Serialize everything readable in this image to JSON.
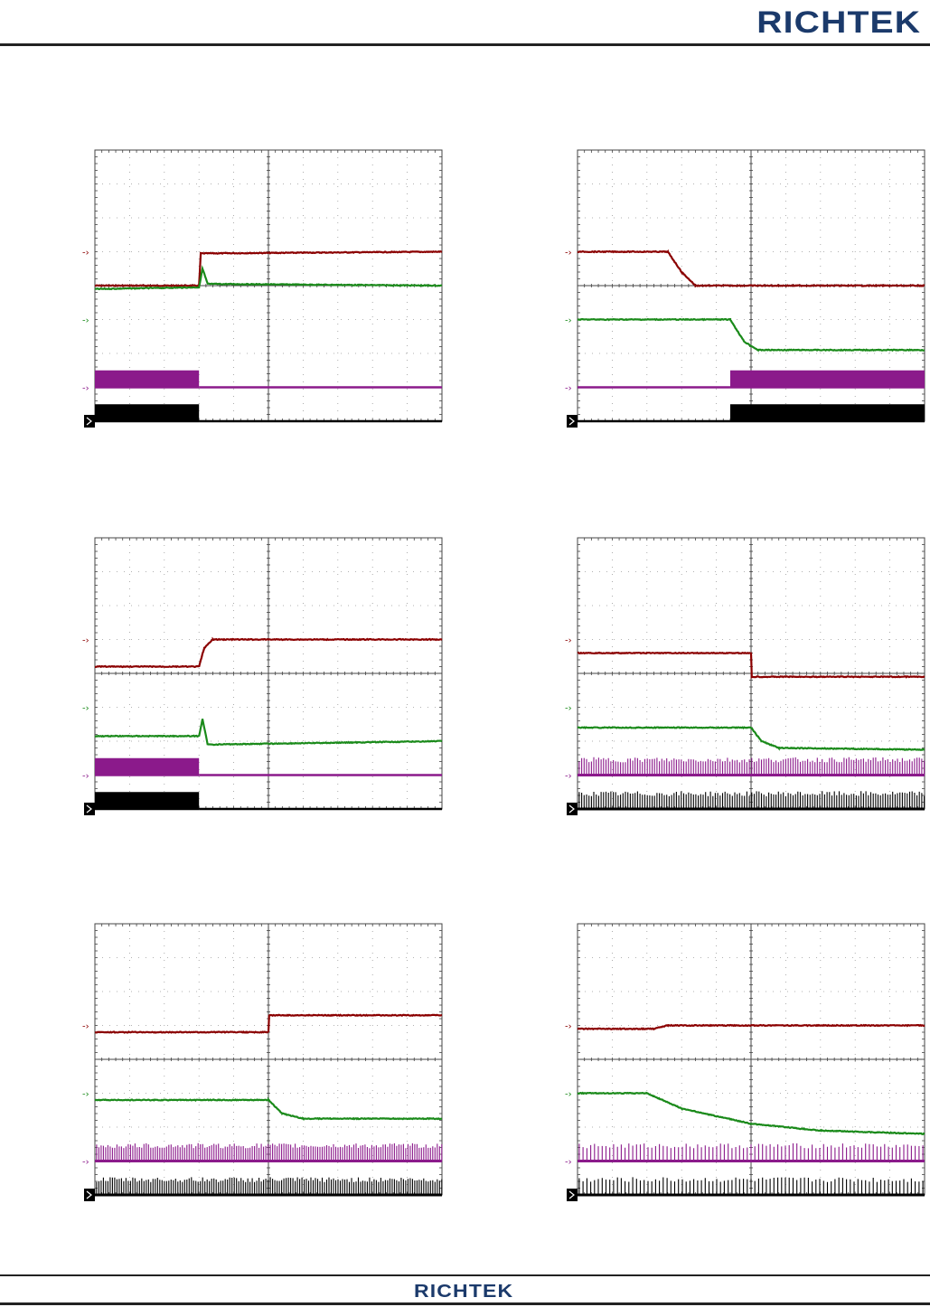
{
  "header": {
    "logo_text": "RICHTEK"
  },
  "footer": {
    "logo_text": "RICHTEK"
  },
  "colors": {
    "ch1": "#8b0000",
    "ch2": "#1a8a1a",
    "ch3": "#8b1a8b",
    "ch4": "#000000",
    "grid": "#444444",
    "brand": "#1b3a6b"
  },
  "chart_data": [
    {
      "type": "line",
      "title": "",
      "grid": true,
      "divisions": {
        "x": 10,
        "y": 8
      },
      "series": [
        {
          "channel": 1,
          "color": "#8b0000",
          "kind": "level",
          "ground_div": 3,
          "points": [
            [
              0,
              4.0
            ],
            [
              3.0,
              4.0
            ],
            [
              3.05,
              3.05
            ],
            [
              10,
              3.0
            ]
          ]
        },
        {
          "channel": 2,
          "color": "#1a8a1a",
          "kind": "level",
          "ground_div": 5,
          "points": [
            [
              0,
              4.1
            ],
            [
              3.0,
              4.05
            ],
            [
              3.1,
              3.5
            ],
            [
              3.25,
              3.95
            ],
            [
              10,
              4.0
            ]
          ]
        },
        {
          "channel": 3,
          "color": "#8b1a8b",
          "kind": "switching",
          "ground_div": 7,
          "segments": [
            [
              0,
              3.0,
              0.5
            ],
            [
              3.0,
              10,
              0.0
            ]
          ]
        },
        {
          "channel": 4,
          "color": "#000000",
          "kind": "switching",
          "ground_div": 8,
          "segments": [
            [
              0,
              3.0,
              0.5
            ],
            [
              3.0,
              10,
              0.0
            ]
          ]
        }
      ]
    },
    {
      "type": "line",
      "title": "",
      "grid": true,
      "divisions": {
        "x": 10,
        "y": 8
      },
      "series": [
        {
          "channel": 1,
          "color": "#8b0000",
          "kind": "level",
          "ground_div": 3,
          "points": [
            [
              0,
              3.0
            ],
            [
              2.6,
              3.0
            ],
            [
              3.0,
              3.6
            ],
            [
              3.4,
              4.0
            ],
            [
              10,
              4.0
            ]
          ]
        },
        {
          "channel": 2,
          "color": "#1a8a1a",
          "kind": "level",
          "ground_div": 5,
          "points": [
            [
              0,
              5.0
            ],
            [
              4.4,
              5.0
            ],
            [
              4.8,
              5.65
            ],
            [
              5.2,
              5.9
            ],
            [
              10,
              5.9
            ]
          ]
        },
        {
          "channel": 3,
          "color": "#8b1a8b",
          "kind": "switching",
          "ground_div": 7,
          "segments": [
            [
              0,
              4.4,
              0.0
            ],
            [
              4.4,
              10,
              0.5
            ]
          ]
        },
        {
          "channel": 4,
          "color": "#000000",
          "kind": "switching",
          "ground_div": 8,
          "segments": [
            [
              0,
              4.4,
              0.0
            ],
            [
              4.4,
              10,
              0.5
            ]
          ]
        }
      ]
    },
    {
      "type": "line",
      "title": "",
      "grid": true,
      "divisions": {
        "x": 10,
        "y": 8
      },
      "series": [
        {
          "channel": 1,
          "color": "#8b0000",
          "kind": "level",
          "ground_div": 3,
          "points": [
            [
              0,
              3.8
            ],
            [
              3.0,
              3.8
            ],
            [
              3.15,
              3.25
            ],
            [
              3.4,
              3.0
            ],
            [
              10,
              3.0
            ]
          ]
        },
        {
          "channel": 2,
          "color": "#1a8a1a",
          "kind": "level",
          "ground_div": 5,
          "points": [
            [
              0,
              5.85
            ],
            [
              3.0,
              5.85
            ],
            [
              3.1,
              5.35
            ],
            [
              3.25,
              6.1
            ],
            [
              10,
              6.0
            ]
          ]
        },
        {
          "channel": 3,
          "color": "#8b1a8b",
          "kind": "switching",
          "ground_div": 7,
          "segments": [
            [
              0,
              3.0,
              0.5
            ],
            [
              3.0,
              10,
              0.0
            ]
          ]
        },
        {
          "channel": 4,
          "color": "#000000",
          "kind": "switching",
          "ground_div": 8,
          "segments": [
            [
              0,
              3.0,
              0.5
            ],
            [
              3.0,
              10,
              0.0
            ]
          ]
        }
      ]
    },
    {
      "type": "line",
      "title": "",
      "grid": true,
      "divisions": {
        "x": 10,
        "y": 8
      },
      "series": [
        {
          "channel": 1,
          "color": "#8b0000",
          "kind": "level",
          "ground_div": 3,
          "points": [
            [
              0,
              3.4
            ],
            [
              5.0,
              3.4
            ],
            [
              5.02,
              4.1
            ],
            [
              10,
              4.1
            ]
          ]
        },
        {
          "channel": 2,
          "color": "#1a8a1a",
          "kind": "level",
          "ground_div": 5,
          "points": [
            [
              0,
              5.6
            ],
            [
              5.0,
              5.6
            ],
            [
              5.3,
              6.0
            ],
            [
              5.8,
              6.2
            ],
            [
              10,
              6.25
            ]
          ]
        },
        {
          "channel": 3,
          "color": "#8b1a8b",
          "kind": "pulses",
          "ground_div": 7,
          "spacing": 0.07,
          "height": 0.5
        },
        {
          "channel": 4,
          "color": "#000000",
          "kind": "pulses",
          "ground_div": 8,
          "spacing": 0.07,
          "height": 0.5
        }
      ]
    },
    {
      "type": "line",
      "title": "",
      "grid": true,
      "divisions": {
        "x": 10,
        "y": 8
      },
      "series": [
        {
          "channel": 1,
          "color": "#8b0000",
          "kind": "level",
          "ground_div": 3,
          "points": [
            [
              0,
              3.2
            ],
            [
              5.0,
              3.2
            ],
            [
              5.02,
              2.7
            ],
            [
              10,
              2.7
            ]
          ]
        },
        {
          "channel": 2,
          "color": "#1a8a1a",
          "kind": "level",
          "ground_div": 5,
          "points": [
            [
              0,
              5.2
            ],
            [
              5.0,
              5.2
            ],
            [
              5.4,
              5.6
            ],
            [
              6.0,
              5.75
            ],
            [
              10,
              5.75
            ]
          ]
        },
        {
          "channel": 3,
          "color": "#8b1a8b",
          "kind": "pulses",
          "ground_div": 7,
          "spacing": 0.065,
          "height": 0.5
        },
        {
          "channel": 4,
          "color": "#000000",
          "kind": "pulses",
          "ground_div": 8,
          "spacing": 0.065,
          "height": 0.5
        }
      ]
    },
    {
      "type": "line",
      "title": "",
      "grid": true,
      "divisions": {
        "x": 10,
        "y": 8
      },
      "series": [
        {
          "channel": 1,
          "color": "#8b0000",
          "kind": "level",
          "ground_div": 3,
          "points": [
            [
              0,
              3.1
            ],
            [
              2.2,
              3.1
            ],
            [
              2.6,
              3.0
            ],
            [
              10,
              3.0
            ]
          ]
        },
        {
          "channel": 2,
          "color": "#1a8a1a",
          "kind": "level",
          "ground_div": 5,
          "points": [
            [
              0,
              5.0
            ],
            [
              2.0,
              5.0
            ],
            [
              3.0,
              5.45
            ],
            [
              5.0,
              5.9
            ],
            [
              7.0,
              6.1
            ],
            [
              10,
              6.2
            ]
          ]
        },
        {
          "channel": 3,
          "color": "#8b1a8b",
          "kind": "pulses",
          "ground_div": 7,
          "spacing": 0.11,
          "height": 0.5
        },
        {
          "channel": 4,
          "color": "#000000",
          "kind": "pulses",
          "ground_div": 8,
          "spacing": 0.11,
          "height": 0.5
        }
      ]
    }
  ]
}
